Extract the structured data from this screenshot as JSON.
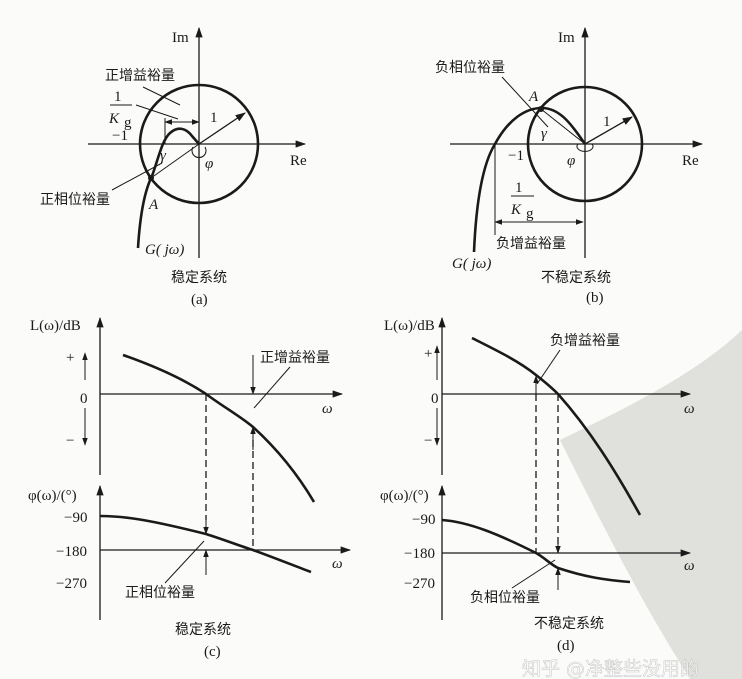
{
  "colors": {
    "ink": "#1a1a1a",
    "background": "#fbfbf9",
    "watermark_bg": "#d9d9d6"
  },
  "panel_a": {
    "im": "Im",
    "re": "Re",
    "minus_one": "−1",
    "one": "1",
    "frac_num": "1",
    "frac_K": "K",
    "frac_sub": "g",
    "gain_margin": "正增益裕量",
    "phase_margin": "正相位裕量",
    "gamma": "γ",
    "phi": "φ",
    "point": "A",
    "curve": "G( jω)",
    "caption": "稳定系统",
    "label": "(a)"
  },
  "panel_b": {
    "im": "Im",
    "re": "Re",
    "minus_one": "−1",
    "one": "1",
    "frac_num": "1",
    "frac_K": "K",
    "frac_sub": "g",
    "gain_margin": "负增益裕量",
    "phase_margin": "负相位裕量",
    "gamma": "γ",
    "phi": "φ",
    "point": "A",
    "curve": "G( jω)",
    "caption": "不稳定系统",
    "label": "(b)"
  },
  "panel_c": {
    "mag_axis": "L(ω)/dB",
    "plus": "+",
    "zero": "0",
    "minus": "−",
    "omega": "ω",
    "phase_axis": "φ(ω)/(°)",
    "t90": "−90",
    "t180": "−180",
    "t270": "−270",
    "gain_margin": "正增益裕量",
    "phase_margin": "正相位裕量",
    "caption": "稳定系统",
    "label": "(c)"
  },
  "panel_d": {
    "mag_axis": "L(ω)/dB",
    "plus": "+",
    "zero": "0",
    "minus": "−",
    "omega": "ω",
    "phase_axis": "φ(ω)/(°)",
    "t90": "−90",
    "t180": "−180",
    "t270": "−270",
    "gain_margin": "负增益裕量",
    "phase_margin": "负相位裕量",
    "caption": "不稳定系统",
    "label": "(d)"
  },
  "watermark": "知乎 @净整些没用的"
}
